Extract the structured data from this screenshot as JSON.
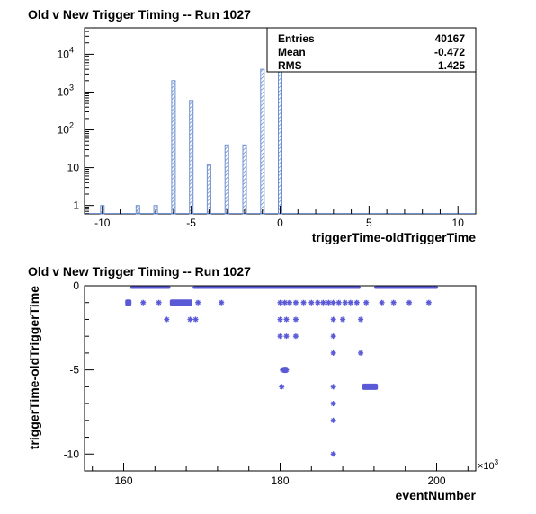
{
  "chart_data": [
    {
      "type": "bar",
      "title": "Old v New Trigger Timing -- Run 1027",
      "xlabel": "triggerTime-oldTriggerTime",
      "ylabel": "",
      "xlim": [
        -11,
        11
      ],
      "ylim": [
        0.6,
        50000
      ],
      "yscale": "log",
      "bin_width": 0.2,
      "x_ticks": [
        -10,
        -5,
        0,
        5,
        10
      ],
      "y_ticks": [
        {
          "value": 1,
          "label": "1"
        },
        {
          "value": 10,
          "label": "10"
        },
        {
          "value": 100,
          "label": "10",
          "exp": "2"
        },
        {
          "value": 1000,
          "label": "10",
          "exp": "3"
        },
        {
          "value": 10000,
          "label": "10",
          "exp": "4"
        }
      ],
      "bins": [
        {
          "x": -10,
          "count": 1
        },
        {
          "x": -8,
          "count": 1
        },
        {
          "x": -7,
          "count": 1
        },
        {
          "x": -6,
          "count": 2000
        },
        {
          "x": -5,
          "count": 600
        },
        {
          "x": -4,
          "count": 12
        },
        {
          "x": -3,
          "count": 40
        },
        {
          "x": -2,
          "count": 40
        },
        {
          "x": -1,
          "count": 4000
        },
        {
          "x": 0,
          "count": 33000
        }
      ],
      "stats": [
        {
          "label": "Entries",
          "value": "40167"
        },
        {
          "label": "Mean",
          "value": "-0.472"
        },
        {
          "label": "RMS",
          "value": "1.425"
        }
      ],
      "colors": {
        "bar": "#6f8fcf"
      }
    },
    {
      "type": "scatter",
      "title": "Old v New Trigger Timing -- Run 1027",
      "xlabel": "eventNumber",
      "ylabel": "triggerTime-oldTriggerTime",
      "xlim": [
        155,
        205
      ],
      "ylim": [
        -11,
        0
      ],
      "x_multiplier": "×10",
      "x_multiplier_exp": "3",
      "x_ticks": [
        160,
        180,
        200
      ],
      "y_ticks": [
        0,
        -5,
        -10
      ],
      "colors": {
        "marker": "#5a5ad6"
      },
      "dense_segments": [
        {
          "y": 0,
          "x_start": 160.8,
          "x_end": 166.0
        },
        {
          "y": 0,
          "x_start": 168.8,
          "x_end": 190.3
        },
        {
          "y": 0,
          "x_start": 192.0,
          "x_end": 200.2
        },
        {
          "y": -1,
          "x_start": 160.2,
          "x_end": 161.0
        },
        {
          "y": -1,
          "x_start": 165.9,
          "x_end": 168.8
        },
        {
          "y": -6,
          "x_start": 190.5,
          "x_end": 192.5
        },
        {
          "y": -5,
          "x_start": 180.3,
          "x_end": 181.0
        }
      ],
      "points": [
        {
          "x": 162.5,
          "y": -1
        },
        {
          "x": 164.5,
          "y": -1
        },
        {
          "x": 169.5,
          "y": -1
        },
        {
          "x": 172.5,
          "y": -1
        },
        {
          "x": 180.0,
          "y": -1
        },
        {
          "x": 180.6,
          "y": -1
        },
        {
          "x": 181.2,
          "y": -1
        },
        {
          "x": 182.0,
          "y": -1
        },
        {
          "x": 183.0,
          "y": -1
        },
        {
          "x": 184.0,
          "y": -1
        },
        {
          "x": 184.8,
          "y": -1
        },
        {
          "x": 185.5,
          "y": -1
        },
        {
          "x": 186.2,
          "y": -1
        },
        {
          "x": 186.8,
          "y": -1
        },
        {
          "x": 187.5,
          "y": -1
        },
        {
          "x": 188.3,
          "y": -1
        },
        {
          "x": 189.0,
          "y": -1
        },
        {
          "x": 189.8,
          "y": -1
        },
        {
          "x": 191.0,
          "y": -1
        },
        {
          "x": 193.0,
          "y": -1
        },
        {
          "x": 194.5,
          "y": -1
        },
        {
          "x": 196.5,
          "y": -1
        },
        {
          "x": 199.0,
          "y": -1
        },
        {
          "x": 165.5,
          "y": -2
        },
        {
          "x": 168.5,
          "y": -2
        },
        {
          "x": 169.2,
          "y": -2
        },
        {
          "x": 180.0,
          "y": -2
        },
        {
          "x": 180.8,
          "y": -2
        },
        {
          "x": 182.0,
          "y": -2
        },
        {
          "x": 186.8,
          "y": -2
        },
        {
          "x": 188.0,
          "y": -2
        },
        {
          "x": 190.3,
          "y": -2
        },
        {
          "x": 180.0,
          "y": -3
        },
        {
          "x": 180.8,
          "y": -3
        },
        {
          "x": 182.0,
          "y": -3
        },
        {
          "x": 186.8,
          "y": -3
        },
        {
          "x": 186.8,
          "y": -4
        },
        {
          "x": 190.3,
          "y": -4
        },
        {
          "x": 180.3,
          "y": -5
        },
        {
          "x": 180.8,
          "y": -5
        },
        {
          "x": 180.2,
          "y": -6
        },
        {
          "x": 186.8,
          "y": -6
        },
        {
          "x": 186.8,
          "y": -7
        },
        {
          "x": 186.8,
          "y": -8
        },
        {
          "x": 186.8,
          "y": -10
        }
      ]
    }
  ]
}
